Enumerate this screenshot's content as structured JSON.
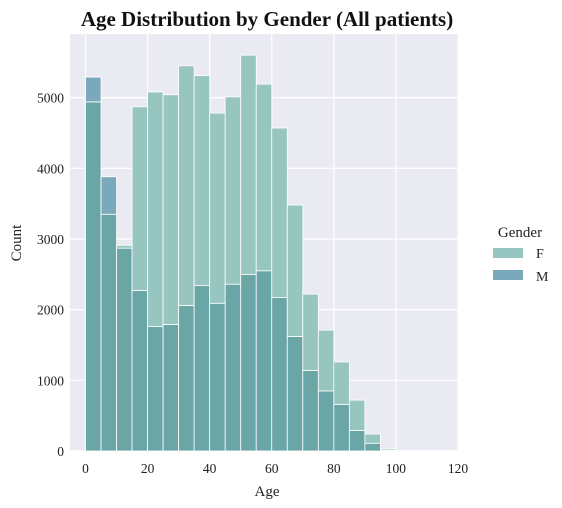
{
  "chart_data": {
    "type": "bar",
    "title": "Age Distribution by Gender (All patients)",
    "xlabel": "Age",
    "ylabel": "Count",
    "xlim": [
      -5,
      120
    ],
    "ylim": [
      0,
      5900
    ],
    "xticks": [
      0,
      20,
      40,
      60,
      80,
      100,
      120
    ],
    "yticks": [
      0,
      1000,
      2000,
      3000,
      4000,
      5000
    ],
    "bin_width": 5,
    "bin_starts": [
      0,
      5,
      10,
      15,
      20,
      25,
      30,
      35,
      40,
      45,
      50,
      55,
      60,
      65,
      70,
      75,
      80,
      85,
      90,
      95,
      100,
      105,
      110
    ],
    "grid": true,
    "legend_title": "Gender",
    "legend_position": "right",
    "series": [
      {
        "name": "F",
        "color": "#97c5bf",
        "values": [
          4940,
          3350,
          2910,
          4870,
          5080,
          5040,
          5450,
          5310,
          4780,
          5010,
          5600,
          5190,
          4570,
          3480,
          2220,
          1710,
          1260,
          720,
          240,
          30,
          0,
          0,
          0
        ]
      },
      {
        "name": "M",
        "color": "#7ba9bc",
        "values": [
          5290,
          3880,
          2870,
          2270,
          1760,
          1790,
          2060,
          2340,
          2090,
          2360,
          2500,
          2550,
          2170,
          1620,
          1140,
          850,
          660,
          290,
          110,
          10,
          0,
          0,
          0
        ]
      }
    ],
    "overlap_color": "#6ba6a7"
  }
}
